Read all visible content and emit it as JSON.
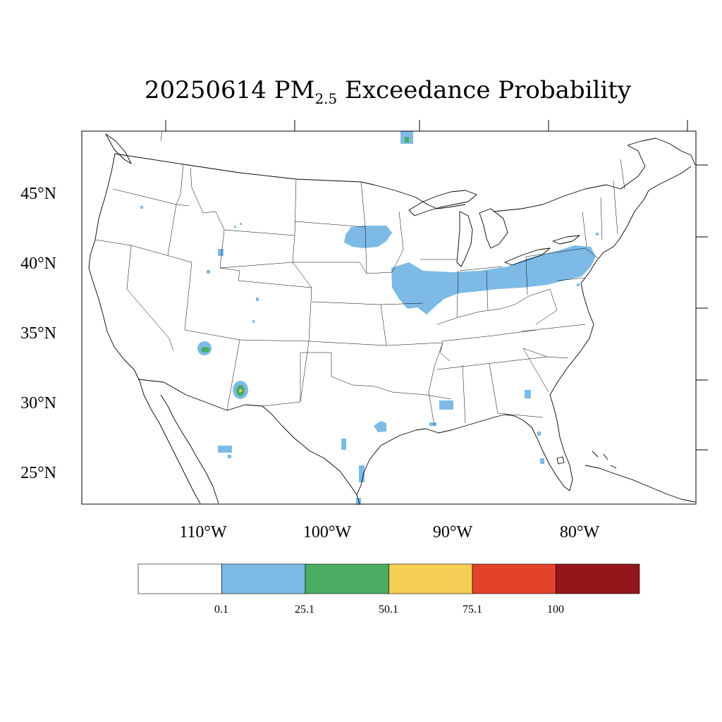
{
  "title": {
    "date": "20250614",
    "species": "PM",
    "species_sub": "2.5",
    "rest": "Exceedance Probability"
  },
  "lat_labels": [
    "45°N",
    "40°N",
    "35°N",
    "30°N",
    "25°N"
  ],
  "lon_labels": [
    "110°W",
    "100°W",
    "90°W",
    "80°W"
  ],
  "colorbar": {
    "bins": [
      {
        "color": "#ffffff"
      },
      {
        "color": "#7dbbe6"
      },
      {
        "color": "#4aad62"
      },
      {
        "color": "#f7cf55"
      },
      {
        "color": "#e24329"
      },
      {
        "color": "#93161b"
      }
    ],
    "labels": [
      "0.1",
      "25.1",
      "50.1",
      "75.1",
      "100"
    ]
  },
  "colors": {
    "low_prob": "#7dbbe6",
    "mid_prob": "#4aad62",
    "high_prob": "#f7cf55"
  }
}
